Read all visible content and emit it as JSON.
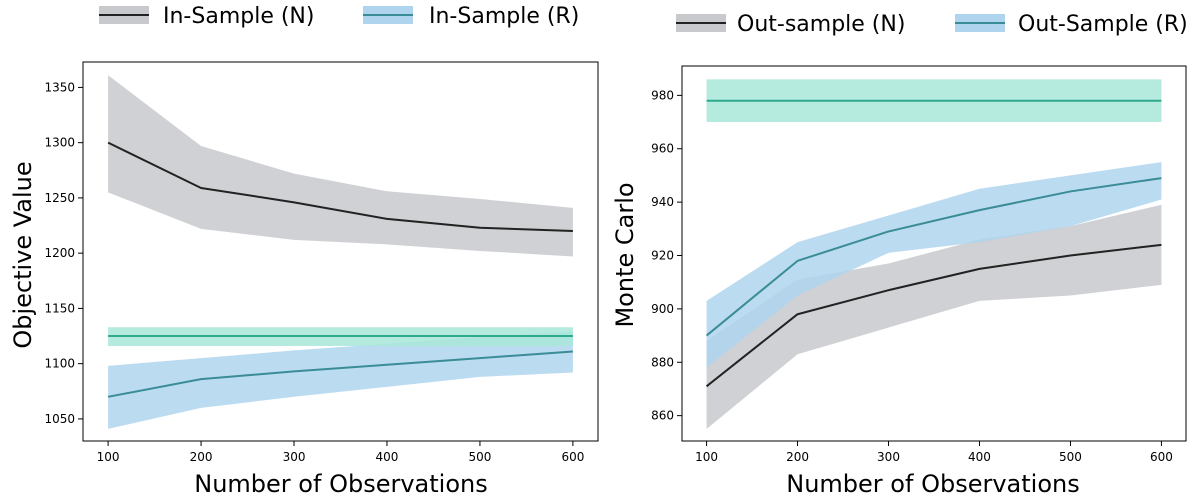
{
  "chart_data": [
    {
      "type": "line",
      "xlabel": "Number of Observations",
      "ylabel": "Objective Value",
      "x": [
        100,
        200,
        300,
        400,
        500,
        600
      ],
      "xticks": [
        100,
        200,
        300,
        400,
        500,
        600
      ],
      "xlim": [
        73,
        627
      ],
      "yticks": [
        1050,
        1100,
        1150,
        1200,
        1250,
        1300,
        1350
      ],
      "ylim": [
        1030,
        1373
      ],
      "grid": false,
      "legend": {
        "placement": "top, outside plot, two columns"
      },
      "series": [
        {
          "name": "In-Sample (N)",
          "color": "#222222",
          "band_color": "#c7c9cd",
          "values": [
            1300,
            1259,
            1246,
            1231,
            1223,
            1220
          ],
          "lower": [
            1255,
            1222,
            1212,
            1208,
            1202,
            1197
          ],
          "upper": [
            1361,
            1297,
            1272,
            1256,
            1249,
            1241
          ]
        },
        {
          "name": "In-Sample (R)",
          "color": "#3a8c96",
          "band_color": "#afd5ee",
          "values": [
            1070,
            1086,
            1093,
            1099,
            1105,
            1111
          ],
          "lower": [
            1041,
            1060,
            1070,
            1079,
            1088,
            1092
          ],
          "upper": [
            1098,
            1105,
            1112,
            1118,
            1124,
            1129
          ]
        },
        {
          "color": "#2ea98c",
          "band_color": "#a8e6d8",
          "values": [
            1125,
            1125,
            1125,
            1125,
            1125,
            1125
          ],
          "lower": [
            1116,
            1116,
            1116,
            1116,
            1116,
            1116
          ],
          "upper": [
            1133,
            1133,
            1133,
            1133,
            1133,
            1133
          ]
        }
      ]
    },
    {
      "type": "line",
      "xlabel": "Number of Observations",
      "ylabel": "Monte Carlo",
      "x": [
        100,
        200,
        300,
        400,
        500,
        600
      ],
      "xticks": [
        100,
        200,
        300,
        400,
        500,
        600
      ],
      "xlim": [
        73,
        627
      ],
      "yticks": [
        860,
        880,
        900,
        920,
        940,
        960,
        980
      ],
      "ylim": [
        850.5,
        991
      ],
      "grid": false,
      "legend": {
        "placement": "top, outside plot, two columns"
      },
      "series": [
        {
          "name": "Out-sample (N)",
          "color": "#222222",
          "band_color": "#c7c9cd",
          "values": [
            871,
            898,
            907,
            915,
            920,
            924
          ],
          "lower": [
            855,
            883,
            893,
            903,
            905,
            909
          ],
          "upper": [
            888,
            911,
            917,
            926,
            931,
            939
          ]
        },
        {
          "name": "Out-Sample (R)",
          "color": "#3a8c96",
          "band_color": "#afd5ee",
          "values": [
            890,
            918,
            929,
            937,
            944,
            949
          ],
          "lower": [
            878,
            905,
            921,
            925,
            931,
            941
          ],
          "upper": [
            903,
            925,
            935,
            945,
            950,
            955
          ]
        },
        {
          "color": "#2ea98c",
          "band_color": "#a8e6d8",
          "values": [
            978,
            978,
            978,
            978,
            978,
            978
          ],
          "lower": [
            970,
            970,
            970,
            970,
            970,
            970
          ],
          "upper": [
            986,
            986,
            986,
            986,
            986,
            986
          ]
        }
      ]
    }
  ]
}
